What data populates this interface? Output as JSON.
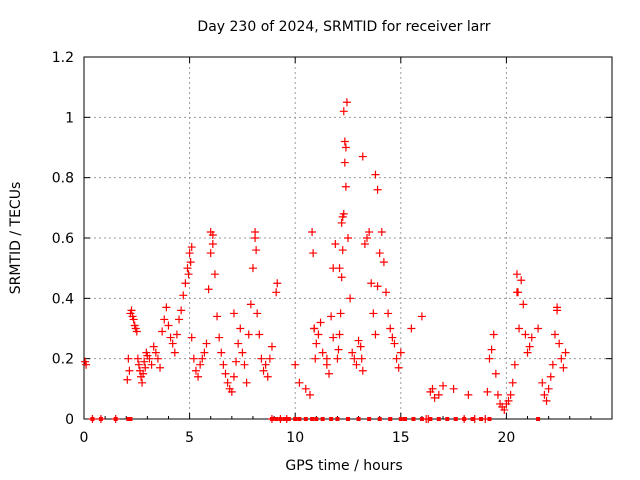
{
  "chart_data": {
    "type": "scatter",
    "title": "Day 230 of 2024, SRMTID for receiver larr",
    "xlabel": "GPS time / hours",
    "ylabel": "SRMTID / TECUs",
    "xlim": [
      0,
      25
    ],
    "ylim": [
      0,
      1.2
    ],
    "grid": true,
    "marker": "+",
    "color": "#ff0000",
    "xticks": [
      0,
      5,
      10,
      15,
      20
    ],
    "xtick_labels": [
      "0",
      "5",
      "10",
      "15",
      "20"
    ],
    "yticks": [
      0,
      0.2,
      0.4,
      0.6,
      0.8,
      1.0,
      1.2
    ],
    "ytick_labels": [
      "0",
      "0.2",
      "0.4",
      "0.6",
      "0.8",
      "1",
      "1.2"
    ],
    "series": [
      {
        "name": "SRMTID",
        "x": [
          0.05,
          0.1,
          0.4,
          0.8,
          1.5,
          2.05,
          2.1,
          2.15,
          2.2,
          2.25,
          2.3,
          2.35,
          2.4,
          2.45,
          2.5,
          2.55,
          2.6,
          2.65,
          2.7,
          2.75,
          2.8,
          2.85,
          2.9,
          2.95,
          3.0,
          3.1,
          3.2,
          3.3,
          3.4,
          3.5,
          3.6,
          3.7,
          3.8,
          3.9,
          4.0,
          4.1,
          4.2,
          4.3,
          4.4,
          4.5,
          4.6,
          4.7,
          4.8,
          4.9,
          5.0,
          5.05,
          5.1,
          5.2,
          5.3,
          5.4,
          5.5,
          5.6,
          5.7,
          5.8,
          5.9,
          6.0,
          6.1,
          6.2,
          6.3,
          6.4,
          6.5,
          6.6,
          6.7,
          6.8,
          6.9,
          7.0,
          7.1,
          7.2,
          7.3,
          7.4,
          7.5,
          7.6,
          7.7,
          7.8,
          7.9,
          8.0,
          8.1,
          8.2,
          8.3,
          8.4,
          8.5,
          8.6,
          8.7,
          8.8,
          8.9,
          9.1,
          9.15,
          8.9,
          9.3,
          9.6,
          10.0,
          10.2,
          10.5,
          10.7,
          10.8,
          10.85,
          10.9,
          11.0,
          11.1,
          11.2,
          11.3,
          11.5,
          11.6,
          11.7,
          11.8,
          11.9,
          12.0,
          12.05,
          12.1,
          12.15,
          12.2,
          12.25,
          12.3,
          12.35,
          12.4,
          12.45,
          12.5,
          12.6,
          12.7,
          12.8,
          12.9,
          13.0,
          13.1,
          13.15,
          13.2,
          13.3,
          13.4,
          13.5,
          13.6,
          13.7,
          13.8,
          13.9,
          14.0,
          14.1,
          14.2,
          14.3,
          14.4,
          14.5,
          14.6,
          14.7,
          14.8,
          14.9,
          15.0,
          15.5,
          16.0,
          16.2,
          16.3,
          16.4,
          16.5,
          16.6,
          16.8,
          17.0,
          17.5,
          18.0,
          18.5,
          19.0,
          19.1,
          19.2,
          19.3,
          19.4,
          19.5,
          19.6,
          19.7,
          19.8,
          19.9,
          20.0,
          20.1,
          20.2,
          20.3,
          20.4,
          20.5,
          20.6,
          20.7,
          20.8,
          20.9,
          21.0,
          21.1,
          21.2,
          21.5,
          21.7,
          21.8,
          21.9,
          22.0,
          22.1,
          22.2,
          22.3,
          22.4,
          22.5,
          22.6,
          22.7,
          22.8,
          12.3,
          12.35,
          12.4,
          12.25,
          13.2,
          13.8,
          13.9,
          12.1,
          11.5,
          11.8,
          8.1,
          8.15,
          6.0,
          5.1,
          4.95,
          7.1,
          18.2,
          20.5,
          20.55,
          22.4,
          6.1,
          12.2,
          10.9,
          10.95
        ],
        "y": [
          0.19,
          0.18,
          0,
          0,
          0,
          0.13,
          0.2,
          0.16,
          0.35,
          0.36,
          0.34,
          0.33,
          0.31,
          0.3,
          0.29,
          0.2,
          0.18,
          0.16,
          0.14,
          0.12,
          0.15,
          0.19,
          0.17,
          0.22,
          0.21,
          0.2,
          0.18,
          0.24,
          0.22,
          0.2,
          0.17,
          0.29,
          0.33,
          0.37,
          0.31,
          0.27,
          0.25,
          0.22,
          0.28,
          0.33,
          0.36,
          0.41,
          0.45,
          0.5,
          0.55,
          0.52,
          0.27,
          0.2,
          0.16,
          0.14,
          0.18,
          0.2,
          0.22,
          0.25,
          0.43,
          0.55,
          0.61,
          0.48,
          0.34,
          0.27,
          0.22,
          0.18,
          0.15,
          0.12,
          0.1,
          0.09,
          0.14,
          0.19,
          0.25,
          0.3,
          0.22,
          0.18,
          0.12,
          0.28,
          0.38,
          0.5,
          0.6,
          0.35,
          0.28,
          0.2,
          0.16,
          0.18,
          0.14,
          0.2,
          0.24,
          0.42,
          0.45,
          0,
          0,
          0,
          0.18,
          0.12,
          0.1,
          0.08,
          0.62,
          0.55,
          0.3,
          0.25,
          0.28,
          0.32,
          0.22,
          0.18,
          0.15,
          0.34,
          0.5,
          0.58,
          0.2,
          0.23,
          0.28,
          0.35,
          0.47,
          0.56,
          0.68,
          0.85,
          0.9,
          1.05,
          0.6,
          0.4,
          0.22,
          0.2,
          0.18,
          0.26,
          0.24,
          0.2,
          0.16,
          0.58,
          0.6,
          0.62,
          0.45,
          0.35,
          0.28,
          0.44,
          0.55,
          0.62,
          0.52,
          0.42,
          0.35,
          0.3,
          0.27,
          0.25,
          0.2,
          0.17,
          0.22,
          0.3,
          0.34,
          0,
          0,
          0.09,
          0.1,
          0.07,
          0.08,
          0.11,
          0.1,
          0,
          0,
          0,
          0.09,
          0.2,
          0.23,
          0.28,
          0.15,
          0.08,
          0.05,
          0.04,
          0.03,
          0.05,
          0.06,
          0.08,
          0.12,
          0.18,
          0.42,
          0.3,
          0.46,
          0.38,
          0.28,
          0.22,
          0.24,
          0.27,
          0.3,
          0.12,
          0.08,
          0.06,
          0.1,
          0.14,
          0.18,
          0.28,
          0.36,
          0.25,
          0.2,
          0.17,
          0.22,
          1.02,
          0.92,
          0.77,
          0.67,
          0.87,
          0.81,
          0.76,
          0.5,
          0.2,
          0.27,
          0.62,
          0.56,
          0.62,
          0.57,
          0.48,
          0.35,
          0.08,
          0.48,
          0.42,
          0.37,
          0.58,
          0.65,
          0.3,
          0.2
        ]
      }
    ],
    "zero_markers_x": [
      0.4,
      0.8,
      1.5,
      2.1,
      2.2,
      8.9,
      9.1,
      9.3,
      9.5,
      9.7,
      10.0,
      10.2,
      10.5,
      10.8,
      11.0,
      11.3,
      11.7,
      12.0,
      12.5,
      13.0,
      13.5,
      14.0,
      14.5,
      15.0,
      15.2,
      15.6,
      16.0,
      16.4,
      16.8,
      17.2,
      17.6,
      18.0,
      18.4,
      18.8,
      19.2,
      21.5
    ]
  }
}
